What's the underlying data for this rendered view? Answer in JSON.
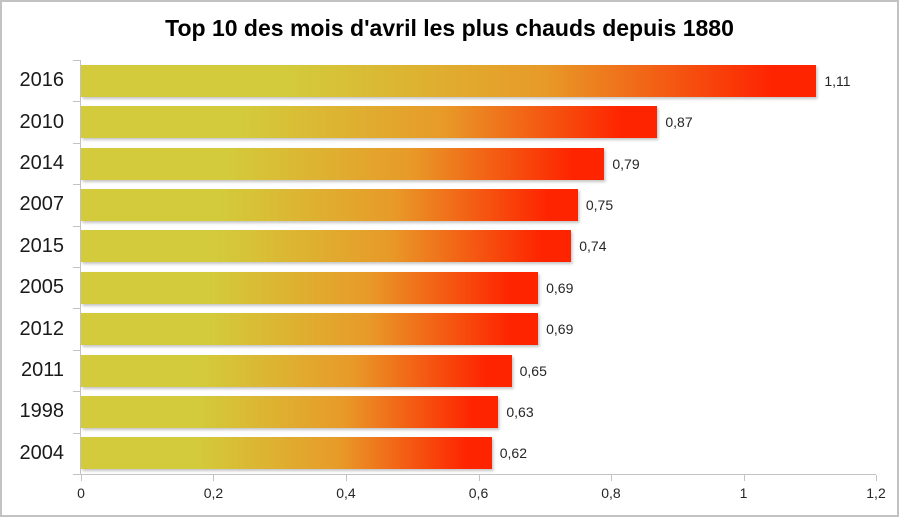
{
  "frame": {
    "background": "#ffffff",
    "border_color": "#c2c2c2"
  },
  "chart_data": {
    "type": "bar",
    "orientation": "horizontal",
    "title": "Top 10 des mois d'avril les plus chauds depuis 1880",
    "categories": [
      "2016",
      "2010",
      "2014",
      "2007",
      "2015",
      "2005",
      "2012",
      "2011",
      "1998",
      "2004"
    ],
    "values": [
      1.11,
      0.87,
      0.79,
      0.75,
      0.74,
      0.69,
      0.69,
      0.65,
      0.63,
      0.62
    ],
    "value_labels": [
      "1,11",
      "0,87",
      "0,79",
      "0,75",
      "0,74",
      "0,69",
      "0,69",
      "0,65",
      "0,63",
      "0,62"
    ],
    "xlabel": "",
    "ylabel": "",
    "xlim": [
      0,
      1.2
    ],
    "x_ticks": [
      0,
      0.2,
      0.4,
      0.6,
      0.8,
      1,
      1.2
    ],
    "x_tick_labels": [
      "0",
      "0,2",
      "0,4",
      "0,6",
      "0,8",
      "1",
      "1,2"
    ],
    "grid": false,
    "legend_position": "none",
    "bar_gradient": {
      "start": "#d3cb3b",
      "mid": "#e89a28",
      "end": "#fe2400"
    },
    "axis_color": "#c3c3c3",
    "category_label_color": "#1a1a1a",
    "value_label_color": "#262626"
  }
}
